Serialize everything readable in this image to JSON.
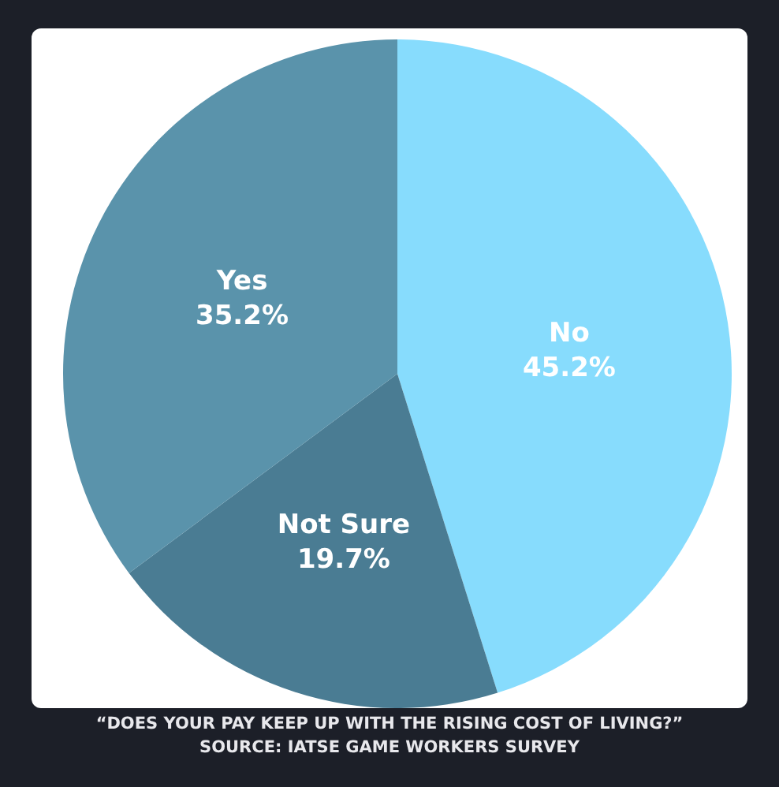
{
  "chart_data": {
    "type": "pie",
    "categories": [
      "No",
      "Not Sure",
      "Yes"
    ],
    "values": [
      45.2,
      19.7,
      35.2
    ],
    "value_labels": [
      "45.2%",
      "19.7%",
      "35.2%"
    ],
    "colors": [
      "#87dcfd",
      "#4a7c93",
      "#5a93ab"
    ],
    "legend": false,
    "annotations": [
      "“DOES YOUR PAY KEEP UP WITH THE RISING COST OF LIVING?” SOURCE: IATSE GAME WORKERS SURVEY"
    ]
  }
}
